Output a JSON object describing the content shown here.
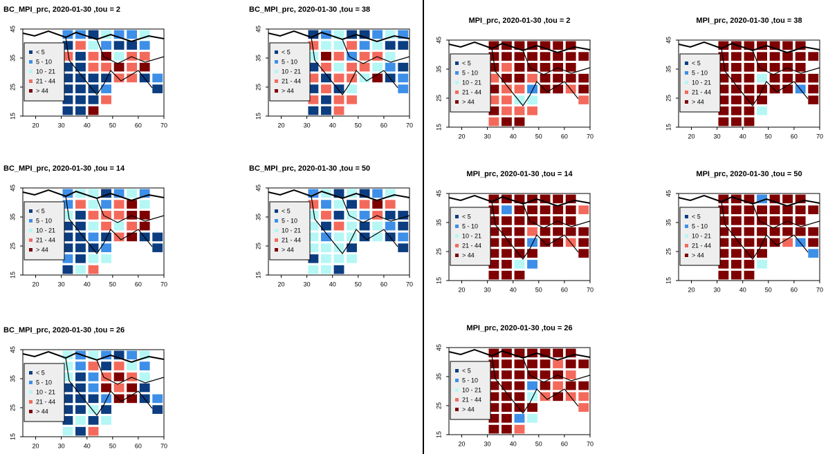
{
  "legend": {
    "labels": [
      "< 5",
      "5 - 10",
      "10 - 21",
      "21 - 44",
      "> 44"
    ],
    "colors": [
      "#0b3d80",
      "#3d8fe8",
      "#b4f7f5",
      "#f36a5c",
      "#7e0000"
    ]
  },
  "xlim": [
    15,
    70
  ],
  "ylim": [
    15,
    45
  ],
  "xticks": [
    20,
    30,
    40,
    50,
    60,
    70
  ],
  "yticks": [
    15,
    25,
    35,
    45
  ],
  "panels": [
    {
      "title": "BC_MPI_prc, 2020-01-30 ,tou = 2",
      "cells": [
        [
          null,
          null,
          null,
          1,
          1,
          0,
          2,
          1,
          1,
          2,
          null
        ],
        [
          null,
          null,
          null,
          0,
          3,
          2,
          1,
          0,
          0,
          1,
          null
        ],
        [
          null,
          null,
          null,
          3,
          0,
          3,
          4,
          2,
          3,
          3,
          null
        ],
        [
          null,
          null,
          null,
          0,
          0,
          3,
          3,
          4,
          3,
          4,
          null
        ],
        [
          null,
          null,
          null,
          0,
          0,
          0,
          0,
          3,
          3,
          0,
          1
        ],
        [
          null,
          null,
          null,
          0,
          0,
          0,
          1,
          null,
          null,
          null,
          0
        ],
        [
          null,
          null,
          null,
          0,
          0,
          0,
          3,
          null,
          null,
          null,
          null
        ],
        [
          null,
          null,
          null,
          0,
          0,
          4,
          null,
          null,
          null,
          null,
          null
        ]
      ]
    },
    {
      "title": "BC_MPI_prc, 2020-01-30 ,tou = 38",
      "cells": [
        [
          null,
          null,
          null,
          0,
          1,
          2,
          0,
          0,
          1,
          2,
          1
        ],
        [
          null,
          null,
          null,
          3,
          2,
          2,
          3,
          1,
          2,
          0,
          0
        ],
        [
          null,
          null,
          null,
          2,
          4,
          3,
          1,
          3,
          3,
          2,
          null
        ],
        [
          null,
          null,
          null,
          0,
          3,
          2,
          3,
          3,
          2,
          1,
          0
        ],
        [
          null,
          null,
          null,
          3,
          0,
          3,
          3,
          2,
          4,
          0,
          1
        ],
        [
          null,
          null,
          null,
          0,
          3,
          0,
          2,
          null,
          null,
          null,
          1
        ],
        [
          null,
          null,
          null,
          3,
          0,
          3,
          3,
          null,
          null,
          null,
          null
        ],
        [
          null,
          null,
          null,
          0,
          0,
          3,
          null,
          null,
          null,
          null,
          null
        ]
      ]
    },
    {
      "title": "BC_MPI_prc, 2020-01-30 ,tou = 14",
      "cells": [
        [
          null,
          null,
          null,
          1,
          2,
          2,
          0,
          1,
          2,
          1,
          null
        ],
        [
          null,
          null,
          null,
          1,
          3,
          2,
          1,
          3,
          4,
          2,
          null
        ],
        [
          null,
          null,
          null,
          2,
          0,
          3,
          3,
          3,
          4,
          4,
          null
        ],
        [
          null,
          null,
          null,
          0,
          0,
          2,
          3,
          2,
          3,
          4,
          null
        ],
        [
          null,
          null,
          null,
          0,
          0,
          1,
          0,
          3,
          4,
          0,
          0
        ],
        [
          null,
          null,
          null,
          0,
          0,
          0,
          1,
          null,
          null,
          null,
          0
        ],
        [
          null,
          null,
          null,
          1,
          0,
          2,
          2,
          null,
          null,
          null,
          null
        ],
        [
          null,
          null,
          null,
          0,
          2,
          3,
          null,
          null,
          null,
          null,
          null
        ]
      ]
    },
    {
      "title": "BC_MPI_prc, 2020-01-30 ,tou = 50",
      "cells": [
        [
          null,
          null,
          null,
          1,
          2,
          0,
          2,
          0,
          1,
          2,
          null
        ],
        [
          null,
          null,
          null,
          3,
          1,
          2,
          0,
          3,
          4,
          3,
          null
        ],
        [
          null,
          null,
          null,
          2,
          3,
          0,
          2,
          1,
          3,
          0,
          0
        ],
        [
          null,
          null,
          null,
          2,
          0,
          3,
          2,
          0,
          2,
          1,
          0
        ],
        [
          null,
          null,
          null,
          2,
          1,
          2,
          2,
          0,
          2,
          0,
          1
        ],
        [
          null,
          null,
          null,
          2,
          2,
          2,
          0,
          null,
          null,
          null,
          0
        ],
        [
          null,
          null,
          null,
          0,
          2,
          2,
          2,
          null,
          null,
          null,
          null
        ],
        [
          null,
          null,
          null,
          2,
          2,
          0,
          null,
          null,
          null,
          null,
          null
        ]
      ]
    },
    {
      "title": "BC_MPI_prc, 2020-01-30 ,tou = 26",
      "cells": [
        [
          null,
          null,
          null,
          2,
          1,
          2,
          1,
          0,
          1,
          2,
          null
        ],
        [
          null,
          null,
          null,
          2,
          1,
          3,
          0,
          3,
          2,
          1,
          null
        ],
        [
          null,
          null,
          null,
          2,
          0,
          1,
          3,
          4,
          3,
          2,
          null
        ],
        [
          null,
          null,
          null,
          0,
          0,
          1,
          4,
          3,
          4,
          0,
          null
        ],
        [
          null,
          null,
          null,
          0,
          0,
          0,
          1,
          4,
          4,
          0,
          1
        ],
        [
          null,
          null,
          null,
          0,
          0,
          2,
          0,
          null,
          null,
          null,
          0
        ],
        [
          null,
          null,
          null,
          0,
          2,
          0,
          2,
          null,
          null,
          null,
          null
        ],
        [
          null,
          null,
          null,
          2,
          0,
          3,
          null,
          null,
          null,
          null,
          null
        ]
      ]
    },
    {
      "title": "MPI_prc, 2020-01-30 ,tou = 2",
      "cells": [
        [
          null,
          null,
          null,
          4,
          4,
          4,
          4,
          4,
          4,
          4,
          null
        ],
        [
          null,
          null,
          null,
          4,
          4,
          4,
          4,
          4,
          4,
          4,
          4
        ],
        [
          null,
          null,
          null,
          4,
          3,
          4,
          4,
          4,
          4,
          4,
          null
        ],
        [
          null,
          null,
          null,
          3,
          4,
          4,
          3,
          4,
          4,
          4,
          4
        ],
        [
          null,
          null,
          null,
          4,
          3,
          3,
          1,
          4,
          4,
          3,
          4
        ],
        [
          null,
          null,
          null,
          3,
          3,
          2,
          2,
          null,
          null,
          null,
          3
        ],
        [
          null,
          null,
          null,
          4,
          3,
          3,
          3,
          null,
          null,
          null,
          null
        ],
        [
          null,
          null,
          null,
          3,
          4,
          4,
          null,
          null,
          null,
          null,
          null
        ]
      ]
    },
    {
      "title": "MPI_prc, 2020-01-30 ,tou = 38",
      "cells": [
        [
          null,
          null,
          null,
          4,
          4,
          4,
          4,
          4,
          4,
          4,
          null
        ],
        [
          null,
          null,
          null,
          4,
          4,
          4,
          4,
          4,
          4,
          4,
          4
        ],
        [
          null,
          null,
          null,
          4,
          4,
          4,
          4,
          4,
          4,
          4,
          null
        ],
        [
          null,
          null,
          null,
          4,
          4,
          4,
          2,
          4,
          4,
          4,
          4
        ],
        [
          null,
          null,
          null,
          4,
          4,
          4,
          4,
          4,
          4,
          1,
          4
        ],
        [
          null,
          null,
          null,
          4,
          4,
          4,
          4,
          null,
          null,
          null,
          4
        ],
        [
          null,
          null,
          null,
          4,
          4,
          4,
          2,
          null,
          null,
          null,
          null
        ],
        [
          null,
          null,
          null,
          4,
          4,
          4,
          null,
          null,
          null,
          null,
          null
        ]
      ]
    },
    {
      "title": "MPI_prc, 2020-01-30 ,tou = 14",
      "cells": [
        [
          null,
          null,
          null,
          4,
          4,
          4,
          4,
          4,
          4,
          4,
          null
        ],
        [
          null,
          null,
          null,
          4,
          1,
          4,
          4,
          4,
          4,
          4,
          3
        ],
        [
          null,
          null,
          null,
          4,
          4,
          4,
          4,
          4,
          4,
          4,
          null
        ],
        [
          null,
          null,
          null,
          4,
          4,
          4,
          3,
          4,
          4,
          4,
          4
        ],
        [
          null,
          null,
          null,
          4,
          4,
          4,
          1,
          4,
          4,
          3,
          4
        ],
        [
          null,
          null,
          null,
          4,
          4,
          4,
          4,
          null,
          null,
          null,
          4
        ],
        [
          null,
          null,
          null,
          4,
          4,
          2,
          1,
          null,
          null,
          null,
          null
        ],
        [
          null,
          null,
          null,
          4,
          4,
          4,
          null,
          null,
          null,
          null,
          null
        ]
      ]
    },
    {
      "title": "MPI_prc, 2020-01-30 ,tou = 50",
      "cells": [
        [
          null,
          null,
          null,
          4,
          4,
          4,
          1,
          4,
          4,
          4,
          null
        ],
        [
          null,
          null,
          null,
          4,
          4,
          4,
          4,
          4,
          4,
          4,
          4
        ],
        [
          null,
          null,
          null,
          4,
          4,
          4,
          4,
          4,
          4,
          4,
          null
        ],
        [
          null,
          null,
          null,
          4,
          4,
          4,
          4,
          4,
          4,
          4,
          4
        ],
        [
          null,
          null,
          null,
          4,
          4,
          4,
          4,
          4,
          3,
          1,
          4
        ],
        [
          null,
          null,
          null,
          4,
          4,
          4,
          4,
          null,
          null,
          null,
          1
        ],
        [
          null,
          null,
          null,
          4,
          4,
          4,
          2,
          null,
          null,
          null,
          null
        ],
        [
          null,
          null,
          null,
          4,
          4,
          4,
          null,
          null,
          null,
          null,
          null
        ]
      ]
    },
    {
      "title": "MPI_prc, 2020-01-30 ,tou = 26",
      "cells": [
        [
          null,
          null,
          null,
          4,
          4,
          4,
          4,
          4,
          4,
          4,
          null
        ],
        [
          null,
          null,
          null,
          4,
          4,
          4,
          4,
          4,
          3,
          4,
          4
        ],
        [
          null,
          null,
          null,
          4,
          4,
          4,
          4,
          4,
          4,
          3,
          null
        ],
        [
          null,
          null,
          null,
          4,
          4,
          4,
          1,
          4,
          3,
          4,
          4
        ],
        [
          null,
          null,
          null,
          4,
          4,
          4,
          2,
          3,
          4,
          3,
          3
        ],
        [
          null,
          null,
          null,
          4,
          4,
          4,
          4,
          null,
          null,
          null,
          3
        ],
        [
          null,
          null,
          null,
          4,
          4,
          1,
          2,
          null,
          null,
          null,
          null
        ],
        [
          null,
          null,
          null,
          4,
          4,
          3,
          null,
          null,
          null,
          null,
          null
        ]
      ]
    }
  ]
}
